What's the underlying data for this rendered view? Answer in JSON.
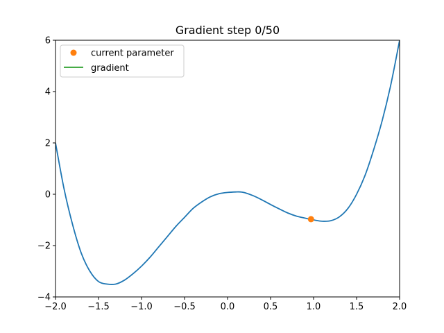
{
  "chart_data": {
    "type": "line",
    "title": "Gradient step 0/50",
    "xlabel": "",
    "ylabel": "",
    "xlim": [
      -2.0,
      2.0
    ],
    "ylim": [
      -4,
      6
    ],
    "x_ticks": [
      "−2.0",
      "−1.5",
      "−1.0",
      "−0.5",
      "0.0",
      "0.5",
      "1.0",
      "1.5",
      "2.0"
    ],
    "y_ticks": [
      "−4",
      "−2",
      "0",
      "2",
      "4",
      "6"
    ],
    "x_tick_values": [
      -2.0,
      -1.5,
      -1.0,
      -0.5,
      0.0,
      0.5,
      1.0,
      1.5,
      2.0
    ],
    "y_tick_values": [
      -4,
      -2,
      0,
      2,
      4,
      6
    ],
    "grid": false,
    "legend_position": "top-left",
    "series": [
      {
        "name": "",
        "kind": "line",
        "color": "#1f77b4",
        "x": [
          -2.0,
          -1.9,
          -1.8,
          -1.7,
          -1.6,
          -1.5,
          -1.4,
          -1.3,
          -1.2,
          -1.1,
          -1.0,
          -0.9,
          -0.8,
          -0.7,
          -0.6,
          -0.5,
          -0.4,
          -0.3,
          -0.2,
          -0.1,
          0.0,
          0.1,
          0.15,
          0.2,
          0.3,
          0.4,
          0.5,
          0.6,
          0.7,
          0.8,
          0.9,
          1.0,
          1.1,
          1.2,
          1.3,
          1.4,
          1.5,
          1.6,
          1.7,
          1.8,
          1.9,
          2.0
        ],
        "y": [
          2.0,
          0.2,
          -1.2,
          -2.3,
          -3.0,
          -3.4,
          -3.5,
          -3.5,
          -3.35,
          -3.1,
          -2.8,
          -2.45,
          -2.05,
          -1.65,
          -1.25,
          -0.9,
          -0.55,
          -0.3,
          -0.1,
          0.02,
          0.07,
          0.09,
          0.09,
          0.06,
          -0.06,
          -0.22,
          -0.4,
          -0.57,
          -0.73,
          -0.85,
          -0.93,
          -1.0,
          -1.05,
          -1.03,
          -0.88,
          -0.55,
          0.0,
          0.75,
          1.75,
          2.9,
          4.3,
          6.0
        ]
      },
      {
        "name": "current parameter",
        "kind": "point",
        "color": "#ff7f0e",
        "x": [
          0.97
        ],
        "y": [
          -0.97
        ]
      },
      {
        "name": "gradient",
        "kind": "line",
        "color": "#2ca02c",
        "x": [],
        "y": []
      }
    ]
  }
}
